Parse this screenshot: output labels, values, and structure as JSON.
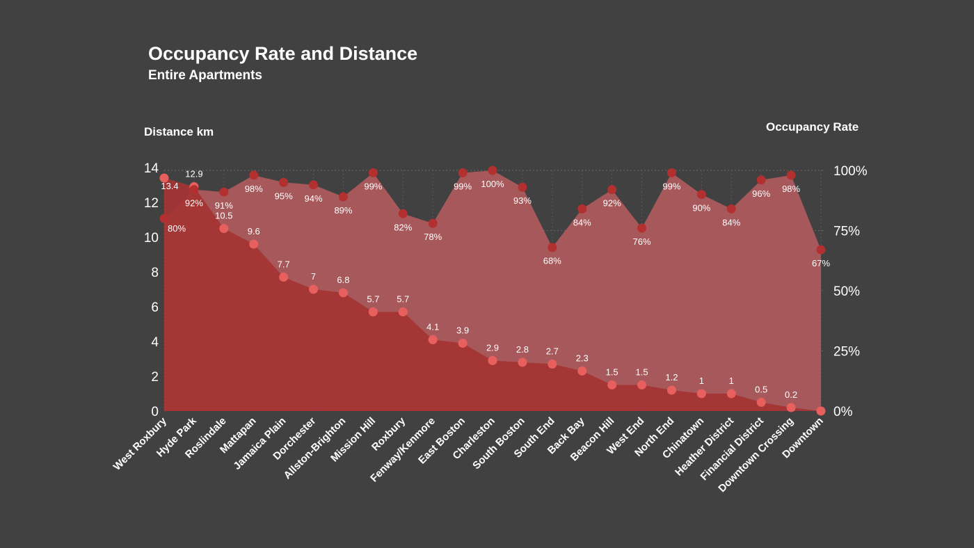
{
  "chart_data": {
    "type": "area",
    "title": "Occupancy Rate and Distance",
    "subtitle": "Entire Apartments",
    "y_left_label": "Distance km",
    "y_right_label": "Occupancy Rate",
    "y_left_range": [
      0,
      14
    ],
    "y_left_ticks": [
      "0",
      "2",
      "4",
      "6",
      "8",
      "10",
      "12",
      "14"
    ],
    "y_right_range": [
      0,
      100
    ],
    "y_right_ticks": [
      "0%",
      "25%",
      "50%",
      "75%",
      "100%"
    ],
    "grid": true,
    "categories": [
      "West Roxbury",
      "Hyde Park",
      "Roslindale",
      "Mattapan",
      "Jamaica Plain",
      "Dorchester",
      "Allston-Brighton",
      "Mission Hill",
      "Roxbury",
      "Fenway/Kenmore",
      "East Boston",
      "Charleston",
      "South Boston",
      "South End",
      "Back Bay",
      "Beacon Hill",
      "West End",
      "North End",
      "Chinatown",
      "Heather District",
      "Financial District",
      "Downtown Crossing",
      "Downtown"
    ],
    "series": [
      {
        "axis": "left",
        "color": "#a33535",
        "values": [
          13.4,
          12.9,
          10.5,
          9.6,
          7.7,
          7,
          6.8,
          5.7,
          5.7,
          4.1,
          3.9,
          2.9,
          2.8,
          2.7,
          2.3,
          1.5,
          1.5,
          1.2,
          1,
          1,
          0.5,
          0.2,
          0
        ],
        "labels": [
          "13.4",
          "12.9",
          "10.5",
          "9.6",
          "7.7",
          "7",
          "6.8",
          "5.7",
          "5.7",
          "4.1",
          "3.9",
          "2.9",
          "2.8",
          "2.7",
          "2.3",
          "1.5",
          "1.5",
          "1.2",
          "1",
          "1",
          "0.5",
          "0.2",
          ""
        ]
      },
      {
        "axis": "right",
        "color": "#b05a5c",
        "values": [
          80,
          92,
          91,
          98,
          95,
          94,
          89,
          99,
          82,
          78,
          99,
          100,
          93,
          68,
          84,
          92,
          76,
          99,
          90,
          84,
          96,
          98,
          67
        ],
        "labels": [
          "80%",
          "92%",
          "91%",
          "98%",
          "95%",
          "94%",
          "89%",
          "99%",
          "82%",
          "78%",
          "99%",
          "100%",
          "93%",
          "68%",
          "84%",
          "92%",
          "76%",
          "99%",
          "90%",
          "84%",
          "96%",
          "98%",
          "67%"
        ]
      }
    ]
  }
}
